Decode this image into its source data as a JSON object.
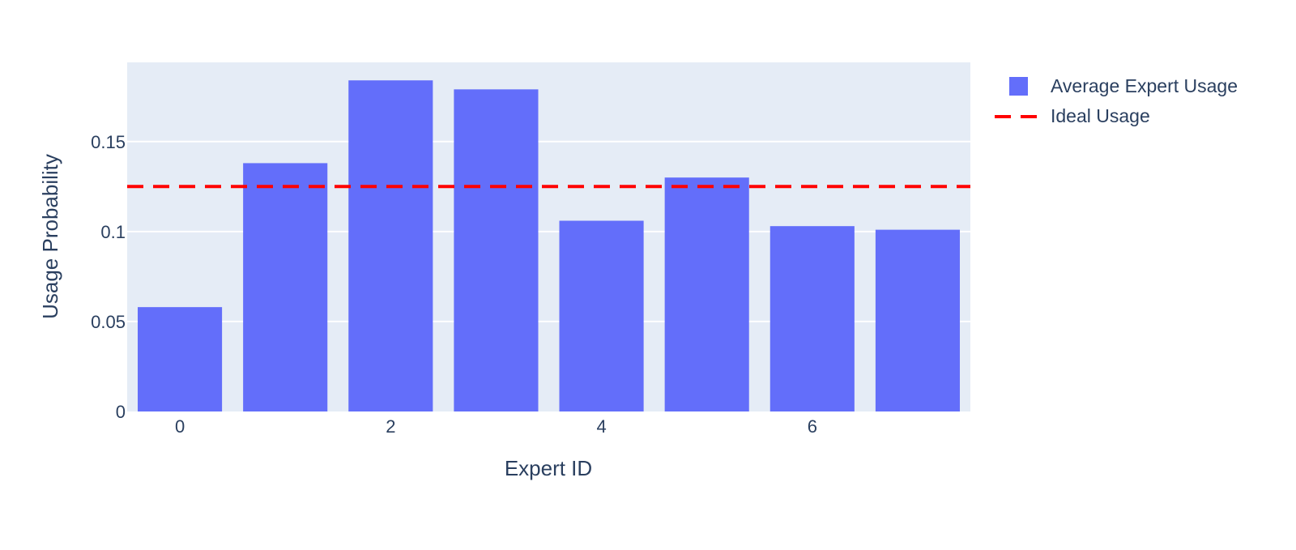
{
  "chart_data": {
    "type": "bar",
    "title": "",
    "xlabel": "Expert ID",
    "ylabel": "Usage Probability",
    "categories": [
      0,
      1,
      2,
      3,
      4,
      5,
      6,
      7
    ],
    "x_tick_labels": [
      "0",
      "2",
      "4",
      "6"
    ],
    "x_tick_values": [
      0,
      2,
      4,
      6
    ],
    "y_tick_labels": [
      "0",
      "0.05",
      "0.1",
      "0.15"
    ],
    "y_tick_values": [
      0,
      0.05,
      0.1,
      0.15
    ],
    "ylim": [
      0,
      0.194
    ],
    "grid": true,
    "legend_position": "top-right outside",
    "series": [
      {
        "name": "Average Expert Usage",
        "type": "bar",
        "color": "#636efa",
        "values": [
          0.058,
          0.138,
          0.184,
          0.179,
          0.106,
          0.13,
          0.103,
          0.101
        ]
      },
      {
        "name": "Ideal Usage",
        "type": "line",
        "style": "dashed",
        "color": "#ff0000",
        "value": 0.125
      }
    ],
    "colors": {
      "plot_background": "#e5ecf6",
      "grid": "#ffffff",
      "text": "#2a3f5f"
    }
  }
}
